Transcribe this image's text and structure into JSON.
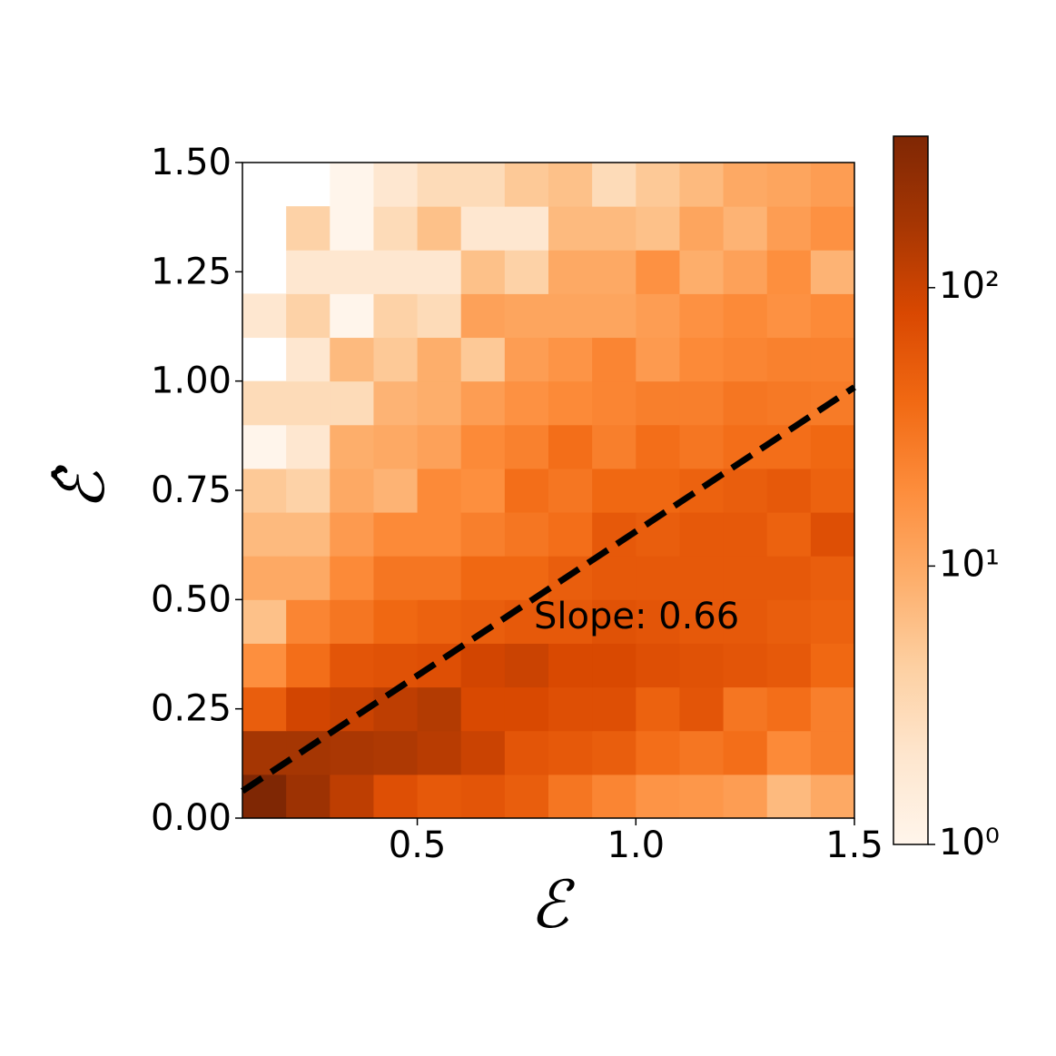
{
  "chart_data": {
    "type": "heatmap",
    "xlabel": "ℰ",
    "ylabel": "ℰ̂",
    "annotation": "Slope: 0.66",
    "xbins": [
      0.1,
      0.2,
      0.3,
      0.4,
      0.5,
      0.6,
      0.7,
      0.8,
      0.9,
      1.0,
      1.1,
      1.2,
      1.3,
      1.4,
      1.5
    ],
    "ybins": [
      0,
      0.1,
      0.2,
      0.3,
      0.4,
      0.5,
      0.6,
      0.7,
      0.8,
      0.9,
      1.0,
      1.1,
      1.2,
      1.3,
      1.4,
      1.5
    ],
    "values": [
      [
        350,
        200,
        120,
        70,
        55,
        60,
        50,
        30,
        22,
        16,
        15,
        13,
        7,
        10
      ],
      [
        170,
        170,
        160,
        150,
        130,
        100,
        60,
        55,
        50,
        35,
        30,
        35,
        20,
        25
      ],
      [
        50,
        90,
        100,
        120,
        140,
        80,
        80,
        70,
        70,
        45,
        60,
        30,
        35,
        25
      ],
      [
        18,
        35,
        60,
        65,
        70,
        90,
        100,
        80,
        80,
        70,
        65,
        60,
        55,
        40
      ],
      [
        6,
        22,
        30,
        40,
        45,
        50,
        55,
        55,
        65,
        60,
        55,
        55,
        50,
        45
      ],
      [
        10,
        10,
        20,
        30,
        30,
        40,
        40,
        50,
        55,
        55,
        55,
        55,
        55,
        50
      ],
      [
        7,
        7,
        14,
        20,
        20,
        25,
        30,
        35,
        55,
        50,
        55,
        55,
        45,
        70
      ],
      [
        5,
        4,
        10,
        8,
        20,
        18,
        35,
        30,
        40,
        40,
        45,
        50,
        55,
        45
      ],
      [
        1,
        2,
        9,
        10,
        12,
        20,
        24,
        35,
        25,
        35,
        30,
        35,
        35,
        40
      ],
      [
        3,
        3,
        3,
        8,
        9,
        13,
        17,
        20,
        22,
        25,
        25,
        30,
        28,
        27
      ],
      [
        null,
        2,
        7,
        5,
        9,
        5,
        13,
        16,
        22,
        14,
        20,
        22,
        24,
        24
      ],
      [
        2,
        4,
        1,
        4,
        3,
        12,
        11,
        11,
        11,
        13,
        17,
        20,
        17,
        20
      ],
      [
        null,
        2,
        2,
        2,
        2,
        6,
        4,
        10,
        10,
        17,
        9,
        12,
        18,
        8
      ],
      [
        null,
        4,
        1,
        3,
        6,
        2,
        2,
        7,
        7,
        6,
        11,
        8,
        13,
        17
      ],
      [
        null,
        null,
        1,
        2,
        3,
        3,
        5,
        6,
        3,
        5,
        7,
        10,
        11,
        13
      ]
    ],
    "colormap": [
      "#fff5eb",
      "#fee6ce",
      "#fdd0a2",
      "#fdae6b",
      "#fd8d3c",
      "#f16913",
      "#d94801",
      "#a63603",
      "#7f2704"
    ],
    "clim": [
      1,
      350
    ],
    "color_scale": "log",
    "cticks": [
      {
        "value": 1,
        "label": "10⁰"
      },
      {
        "value": 10,
        "label": "10¹"
      },
      {
        "value": 100,
        "label": "10²"
      }
    ],
    "xlim": [
      0.1,
      1.5
    ],
    "ylim": [
      0,
      1.5
    ],
    "xticks": [
      0.5,
      {
        "value": 1,
        "label": "1.0"
      },
      1.5
    ],
    "yticks": [
      {
        "value": 0,
        "label": "0.00"
      },
      {
        "value": 0.25,
        "label": "0.25"
      },
      {
        "value": 0.5,
        "label": "0.50"
      },
      {
        "value": 0.75,
        "label": "0.75"
      },
      {
        "value": 1,
        "label": "1.00"
      },
      {
        "value": 1.25,
        "label": "1.25"
      },
      {
        "value": 1.5,
        "label": "1.50"
      }
    ],
    "fit_line": {
      "x": [
        0.1,
        1.5
      ],
      "y": [
        0.062,
        0.986
      ],
      "color": "#000000"
    }
  }
}
